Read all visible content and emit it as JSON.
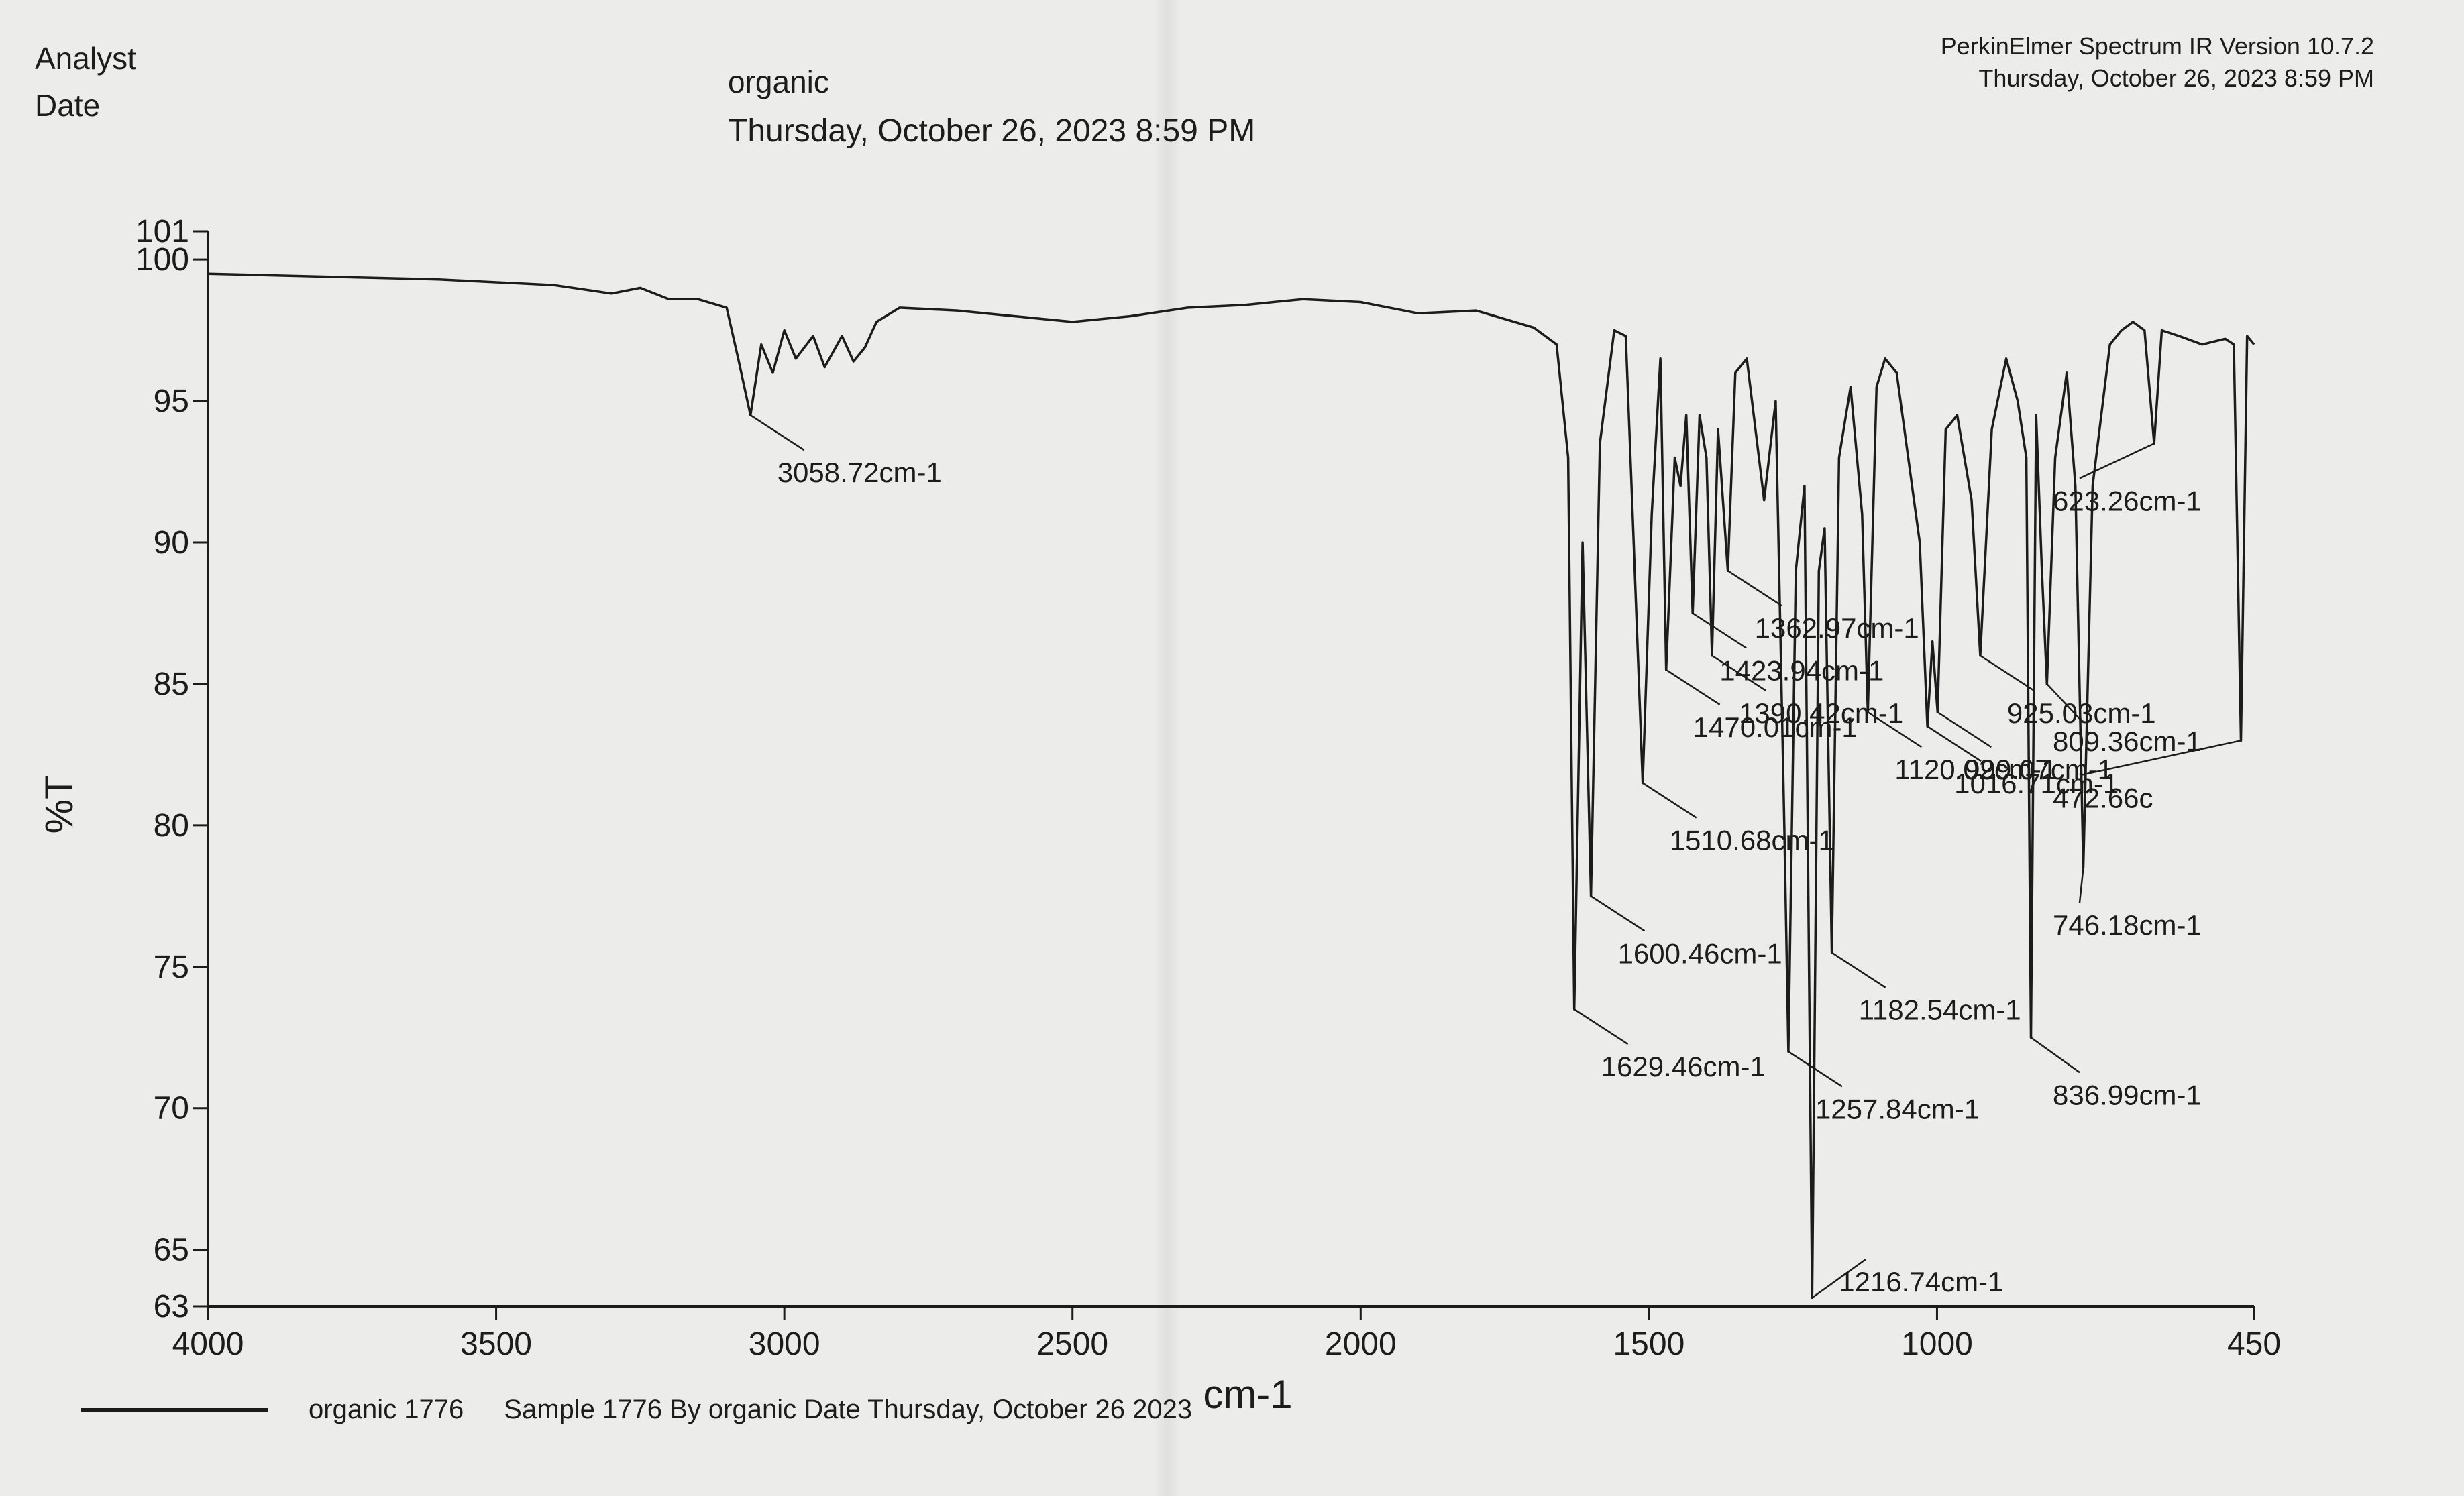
{
  "header": {
    "analyst_label": "Analyst",
    "date_label": "Date",
    "sample_name": "organic",
    "datetime": "Thursday, October 26, 2023 8:59 PM",
    "software": "PerkinElmer Spectrum IR Version 10.7.2",
    "software_datetime": "Thursday, October 26, 2023 8:59 PM"
  },
  "legend": {
    "series_name": "organic 1776",
    "description": "Sample 1776 By organic Date Thursday, October 26 2023"
  },
  "chart_data": {
    "type": "line",
    "title": "",
    "xlabel": "cm-1",
    "ylabel": "%T",
    "xlim": [
      4000,
      450
    ],
    "ylim": [
      63,
      101
    ],
    "x_reversed": true,
    "grid": false,
    "legend_position": "bottom-left",
    "line_color": "#1c1c1c",
    "x_ticks": [
      4000,
      3500,
      3000,
      2500,
      2000,
      1500,
      1000,
      450
    ],
    "y_ticks": [
      101,
      100,
      95,
      90,
      85,
      80,
      75,
      70,
      65,
      63
    ],
    "series": [
      {
        "name": "organic 1776",
        "x": [
          4000,
          3800,
          3600,
          3400,
          3300,
          3250,
          3200,
          3150,
          3100,
          3080,
          3058.72,
          3040,
          3020,
          3000,
          2980,
          2950,
          2930,
          2900,
          2880,
          2860,
          2840,
          2800,
          2700,
          2600,
          2500,
          2400,
          2300,
          2200,
          2100,
          2000,
          1900,
          1800,
          1700,
          1660,
          1640,
          1629.46,
          1615,
          1600.46,
          1585,
          1560,
          1540,
          1530,
          1510.68,
          1495,
          1480,
          1470.01,
          1455,
          1445,
          1435,
          1423.94,
          1412,
          1400,
          1390.42,
          1380,
          1362.97,
          1350,
          1330,
          1300,
          1280,
          1265,
          1257.84,
          1245,
          1230,
          1216.74,
          1205,
          1195,
          1182.54,
          1170,
          1150,
          1130,
          1120.02,
          1105,
          1090,
          1070,
          1050,
          1030,
          1016.71,
          1008,
          999.07,
          985,
          965,
          940,
          925.03,
          905,
          880,
          860,
          845,
          836.99,
          828,
          818,
          809.36,
          795,
          775,
          760,
          746.18,
          730,
          700,
          680,
          660,
          640,
          623.26,
          610,
          580,
          540,
          500,
          485,
          472.66,
          462,
          450
        ],
        "y": [
          99.5,
          99.4,
          99.3,
          99.1,
          98.8,
          99.0,
          98.6,
          98.6,
          98.3,
          96.5,
          94.5,
          97.0,
          96.0,
          97.5,
          96.5,
          97.3,
          96.2,
          97.3,
          96.4,
          96.9,
          97.8,
          98.3,
          98.2,
          98.0,
          97.8,
          98.0,
          98.3,
          98.4,
          98.6,
          98.5,
          98.1,
          98.2,
          97.6,
          97.0,
          93.0,
          73.5,
          90.0,
          77.5,
          93.5,
          97.5,
          97.3,
          92.0,
          81.5,
          91.0,
          96.5,
          85.5,
          93.0,
          92.0,
          94.5,
          87.5,
          94.5,
          93.0,
          86.0,
          94.0,
          89.0,
          96.0,
          96.5,
          91.5,
          95.0,
          80.0,
          72.0,
          89.0,
          92.0,
          63.3,
          89.0,
          90.5,
          75.5,
          93.0,
          95.5,
          91.0,
          84.0,
          95.5,
          96.5,
          96.0,
          93.0,
          90.0,
          83.5,
          86.5,
          84.0,
          94.0,
          94.5,
          91.5,
          86.0,
          94.0,
          96.5,
          95.0,
          93.0,
          72.5,
          94.5,
          89.0,
          85.0,
          93.0,
          96.0,
          92.0,
          78.5,
          92.0,
          97.0,
          97.5,
          97.8,
          97.5,
          93.5,
          97.5,
          97.3,
          97.0,
          97.2,
          97.0,
          83.0,
          97.3,
          97.0
        ]
      }
    ],
    "peak_labels": [
      {
        "x": 3058.72,
        "y": 94.5,
        "text": "3058.72cm-1"
      },
      {
        "x": 1629.46,
        "y": 73.5,
        "text": "1629.46cm-1"
      },
      {
        "x": 1600.46,
        "y": 77.5,
        "text": "1600.46cm-1"
      },
      {
        "x": 1510.68,
        "y": 81.5,
        "text": "1510.68cm-1"
      },
      {
        "x": 1470.01,
        "y": 85.5,
        "text": "1470.01cm-1"
      },
      {
        "x": 1423.94,
        "y": 87.5,
        "text": "1423.94cm-1"
      },
      {
        "x": 1390.42,
        "y": 86.0,
        "text": "1390.42cm-1"
      },
      {
        "x": 1362.97,
        "y": 89.0,
        "text": "1362.97cm-1"
      },
      {
        "x": 1257.84,
        "y": 72.0,
        "text": "1257.84cm-1"
      },
      {
        "x": 1216.74,
        "y": 63.3,
        "text": "1216.74cm-1"
      },
      {
        "x": 1182.54,
        "y": 75.5,
        "text": "1182.54cm-1"
      },
      {
        "x": 1120.02,
        "y": 84.0,
        "text": "1120.02cm-1"
      },
      {
        "x": 1016.71,
        "y": 83.5,
        "text": "1016.71cm-1"
      },
      {
        "x": 999.07,
        "y": 84.0,
        "text": "999.07cm-1"
      },
      {
        "x": 925.03,
        "y": 86.0,
        "text": "925.03cm-1"
      },
      {
        "x": 836.99,
        "y": 72.5,
        "text": "836.99cm-1"
      },
      {
        "x": 809.36,
        "y": 85.0,
        "text": "809.36cm-1"
      },
      {
        "x": 746.18,
        "y": 78.5,
        "text": "746.18cm-1"
      },
      {
        "x": 623.26,
        "y": 93.5,
        "text": "623.26cm-1"
      },
      {
        "x": 472.66,
        "y": 83.0,
        "text": "472.66c"
      }
    ]
  }
}
